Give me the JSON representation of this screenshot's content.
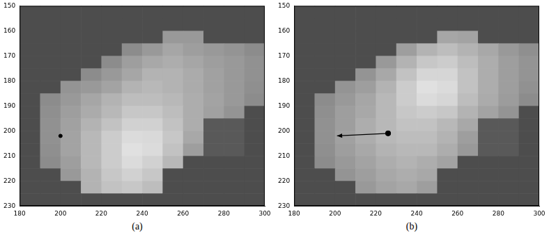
{
  "chart_data": [
    {
      "type": "heatmap",
      "caption": "(a)",
      "xlim": [
        180,
        300
      ],
      "xticks": [
        180,
        200,
        220,
        240,
        260,
        280,
        300
      ],
      "ylim": [
        150,
        230
      ],
      "yticks": [
        150,
        160,
        170,
        180,
        190,
        200,
        210,
        220,
        230
      ],
      "grid": false,
      "x_edges": [
        180,
        190,
        200,
        210,
        220,
        230,
        240,
        250,
        260,
        270,
        280,
        290,
        300
      ],
      "y_edges": [
        150,
        155,
        160,
        165,
        170,
        175,
        180,
        185,
        190,
        195,
        200,
        205,
        210,
        215,
        220,
        225,
        230
      ],
      "cells": [
        [
          0.3,
          0.3,
          0.3,
          0.3,
          0.3,
          0.3,
          0.3,
          0.3,
          0.3,
          0.3,
          0.3,
          0.3
        ],
        [
          0.3,
          0.3,
          0.3,
          0.3,
          0.3,
          0.3,
          0.3,
          0.3,
          0.3,
          0.3,
          0.3,
          0.3
        ],
        [
          0.3,
          0.3,
          0.3,
          0.3,
          0.3,
          0.3,
          0.3,
          0.6,
          0.6,
          0.3,
          0.3,
          0.3
        ],
        [
          0.3,
          0.3,
          0.3,
          0.3,
          0.3,
          0.55,
          0.6,
          0.65,
          0.62,
          0.6,
          0.58,
          0.55
        ],
        [
          0.3,
          0.3,
          0.3,
          0.3,
          0.55,
          0.62,
          0.66,
          0.68,
          0.65,
          0.62,
          0.6,
          0.57
        ],
        [
          0.3,
          0.3,
          0.3,
          0.55,
          0.6,
          0.65,
          0.7,
          0.7,
          0.67,
          0.63,
          0.6,
          0.57
        ],
        [
          0.3,
          0.3,
          0.58,
          0.6,
          0.64,
          0.7,
          0.72,
          0.7,
          0.67,
          0.63,
          0.6,
          0.56
        ],
        [
          0.3,
          0.55,
          0.6,
          0.65,
          0.7,
          0.74,
          0.74,
          0.72,
          0.68,
          0.64,
          0.6,
          0.55
        ],
        [
          0.3,
          0.56,
          0.62,
          0.67,
          0.72,
          0.78,
          0.78,
          0.74,
          0.68,
          0.63,
          0.58,
          0.3
        ],
        [
          0.3,
          0.57,
          0.63,
          0.7,
          0.76,
          0.82,
          0.82,
          0.76,
          0.68,
          0.35,
          0.35,
          0.3
        ],
        [
          0.3,
          0.57,
          0.64,
          0.72,
          0.8,
          0.86,
          0.85,
          0.78,
          0.66,
          0.35,
          0.35,
          0.3
        ],
        [
          0.3,
          0.56,
          0.64,
          0.72,
          0.8,
          0.88,
          0.86,
          0.76,
          0.62,
          0.35,
          0.35,
          0.3
        ],
        [
          0.3,
          0.55,
          0.62,
          0.72,
          0.8,
          0.86,
          0.82,
          0.72,
          0.3,
          0.3,
          0.3,
          0.3
        ],
        [
          0.3,
          0.3,
          0.6,
          0.7,
          0.78,
          0.82,
          0.78,
          0.3,
          0.3,
          0.3,
          0.3,
          0.3
        ],
        [
          0.3,
          0.3,
          0.3,
          0.7,
          0.76,
          0.78,
          0.74,
          0.3,
          0.3,
          0.3,
          0.3,
          0.3
        ],
        [
          0.3,
          0.3,
          0.3,
          0.3,
          0.3,
          0.3,
          0.3,
          0.3,
          0.3,
          0.3,
          0.3,
          0.3
        ]
      ],
      "points": {
        "x": [
          200
        ],
        "y": [
          202
        ],
        "color": "#000000"
      }
    },
    {
      "type": "heatmap",
      "caption": "(b)",
      "xlim": [
        180,
        300
      ],
      "xticks": [
        180,
        200,
        220,
        240,
        260,
        280,
        300
      ],
      "ylim": [
        150,
        230
      ],
      "yticks": [
        150,
        160,
        170,
        180,
        190,
        200,
        210,
        220,
        230
      ],
      "grid": false,
      "x_edges": [
        180,
        190,
        200,
        210,
        220,
        230,
        240,
        250,
        260,
        270,
        280,
        290,
        300
      ],
      "y_edges": [
        150,
        155,
        160,
        165,
        170,
        175,
        180,
        185,
        190,
        195,
        200,
        205,
        210,
        215,
        220,
        225,
        230
      ],
      "cells": [
        [
          0.3,
          0.3,
          0.3,
          0.3,
          0.3,
          0.3,
          0.3,
          0.3,
          0.3,
          0.3,
          0.3,
          0.3
        ],
        [
          0.3,
          0.3,
          0.3,
          0.3,
          0.3,
          0.3,
          0.3,
          0.3,
          0.3,
          0.3,
          0.3,
          0.3
        ],
        [
          0.3,
          0.3,
          0.3,
          0.3,
          0.3,
          0.3,
          0.3,
          0.65,
          0.64,
          0.3,
          0.3,
          0.3
        ],
        [
          0.3,
          0.3,
          0.3,
          0.3,
          0.3,
          0.62,
          0.7,
          0.74,
          0.7,
          0.66,
          0.6,
          0.56
        ],
        [
          0.3,
          0.3,
          0.3,
          0.3,
          0.6,
          0.7,
          0.78,
          0.8,
          0.74,
          0.68,
          0.62,
          0.58
        ],
        [
          0.3,
          0.3,
          0.3,
          0.58,
          0.66,
          0.76,
          0.84,
          0.84,
          0.76,
          0.68,
          0.62,
          0.58
        ],
        [
          0.3,
          0.3,
          0.58,
          0.62,
          0.7,
          0.8,
          0.88,
          0.86,
          0.76,
          0.68,
          0.62,
          0.57
        ],
        [
          0.3,
          0.55,
          0.6,
          0.65,
          0.72,
          0.8,
          0.86,
          0.84,
          0.74,
          0.67,
          0.61,
          0.55
        ],
        [
          0.3,
          0.56,
          0.62,
          0.66,
          0.72,
          0.78,
          0.8,
          0.78,
          0.7,
          0.64,
          0.58,
          0.3
        ],
        [
          0.3,
          0.57,
          0.62,
          0.68,
          0.72,
          0.76,
          0.76,
          0.72,
          0.66,
          0.35,
          0.35,
          0.3
        ],
        [
          0.3,
          0.57,
          0.63,
          0.68,
          0.72,
          0.74,
          0.74,
          0.7,
          0.62,
          0.35,
          0.35,
          0.3
        ],
        [
          0.3,
          0.56,
          0.62,
          0.66,
          0.7,
          0.72,
          0.72,
          0.68,
          0.6,
          0.35,
          0.35,
          0.3
        ],
        [
          0.3,
          0.55,
          0.6,
          0.64,
          0.68,
          0.7,
          0.68,
          0.64,
          0.3,
          0.3,
          0.3,
          0.3
        ],
        [
          0.3,
          0.3,
          0.58,
          0.62,
          0.66,
          0.68,
          0.66,
          0.3,
          0.3,
          0.3,
          0.3,
          0.3
        ],
        [
          0.3,
          0.3,
          0.3,
          0.6,
          0.64,
          0.66,
          0.62,
          0.3,
          0.3,
          0.3,
          0.3,
          0.3
        ],
        [
          0.3,
          0.3,
          0.3,
          0.3,
          0.3,
          0.3,
          0.3,
          0.3,
          0.3,
          0.3,
          0.3,
          0.3
        ]
      ],
      "arrow": {
        "x": [
          226,
          201
        ],
        "y": [
          201,
          202
        ],
        "color": "#000000"
      }
    }
  ]
}
